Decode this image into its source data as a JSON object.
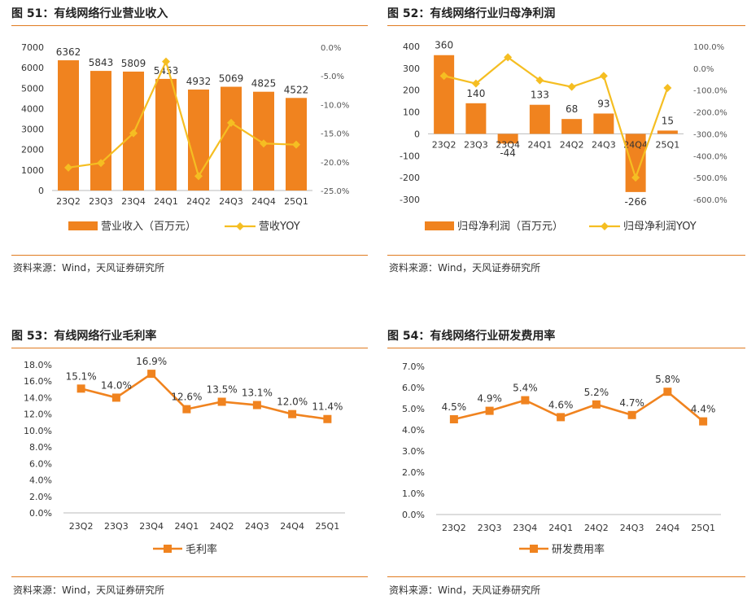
{
  "panels": [
    {
      "title": "图 51：有线网络行业营业收入",
      "source": "资料来源：Wind，天风证券研究所"
    },
    {
      "title": "图 52：有线网络行业归母净利润",
      "source": "资料来源：Wind，天风证券研究所"
    },
    {
      "title": "图 53：有线网络行业毛利率",
      "source": "资料来源：Wind，天风证券研究所"
    },
    {
      "title": "图 54：有线网络行业研发费用率",
      "source": "资料来源：Wind，天风证券研究所"
    }
  ],
  "colors": {
    "bar": "#F0831F",
    "line_yoy": "#F5BE22",
    "line_rate": "#F0831F",
    "rule": "#E07B20"
  },
  "chart_data": [
    {
      "type": "bar",
      "categories": [
        "23Q2",
        "23Q3",
        "23Q4",
        "24Q1",
        "24Q2",
        "24Q3",
        "24Q4",
        "25Q1"
      ],
      "series": [
        {
          "name": "营业收入（百万元）",
          "type": "bar",
          "axis": "left",
          "values": [
            6362,
            5843,
            5809,
            5453,
            4932,
            5069,
            4825,
            4522
          ]
        },
        {
          "name": "营收YOY",
          "type": "line",
          "axis": "right",
          "marker": "diamond",
          "values": [
            -21.0,
            -20.2,
            -15.0,
            -2.5,
            -22.5,
            -13.2,
            -16.8,
            -17.0
          ]
        }
      ],
      "ylim_left": [
        0,
        7000
      ],
      "yticks_left": [
        "7000",
        "6000",
        "5000",
        "4000",
        "3000",
        "2000",
        "1000",
        "0"
      ],
      "ylim_right": [
        -25,
        0
      ],
      "yticks_right": [
        "0.0%",
        "-5.0%",
        "-10.0%",
        "-15.0%",
        "-20.0%",
        "-25.0%"
      ],
      "data_labels": [
        "6362",
        "5843",
        "5809",
        "5453",
        "4932",
        "5069",
        "4825",
        "4522"
      ],
      "grid": false,
      "legend": "bottom"
    },
    {
      "type": "bar",
      "categories": [
        "23Q2",
        "23Q3",
        "23Q4",
        "24Q1",
        "24Q2",
        "24Q3",
        "24Q4",
        "25Q1"
      ],
      "series": [
        {
          "name": "归母净利润（百万元）",
          "type": "bar",
          "axis": "left",
          "values": [
            360,
            140,
            -44,
            133,
            68,
            93,
            -266,
            15
          ]
        },
        {
          "name": "归母净利润YOY",
          "type": "line",
          "axis": "right",
          "marker": "diamond",
          "values": [
            -35,
            -70,
            50,
            -55,
            -85,
            -35,
            -500,
            -90
          ]
        }
      ],
      "ylim_left": [
        -300,
        400
      ],
      "yticks_left": [
        "400",
        "300",
        "200",
        "100",
        "0",
        "-100",
        "-200",
        "-300"
      ],
      "ylim_right": [
        -600,
        100
      ],
      "yticks_right": [
        "100.0%",
        "0.0%",
        "-100.0%",
        "-200.0%",
        "-300.0%",
        "-400.0%",
        "-500.0%",
        "-600.0%"
      ],
      "data_labels": [
        "360",
        "140",
        "-44",
        "133",
        "68",
        "93",
        "-266",
        "15"
      ],
      "grid": false,
      "legend": "bottom"
    },
    {
      "type": "line",
      "categories": [
        "23Q2",
        "23Q3",
        "23Q4",
        "24Q1",
        "24Q2",
        "24Q3",
        "24Q4",
        "25Q1"
      ],
      "series": [
        {
          "name": "毛利率",
          "marker": "square",
          "values": [
            15.1,
            14.0,
            16.9,
            12.6,
            13.5,
            13.1,
            12.0,
            11.4
          ]
        }
      ],
      "ylim": [
        0,
        18
      ],
      "yticks": [
        "18.0%",
        "16.0%",
        "14.0%",
        "12.0%",
        "10.0%",
        "8.0%",
        "6.0%",
        "4.0%",
        "2.0%",
        "0.0%"
      ],
      "data_labels": [
        "15.1%",
        "14.0%",
        "16.9%",
        "12.6%",
        "13.5%",
        "13.1%",
        "12.0%",
        "11.4%"
      ],
      "grid": false,
      "legend": "bottom"
    },
    {
      "type": "line",
      "categories": [
        "23Q2",
        "23Q3",
        "23Q4",
        "24Q1",
        "24Q2",
        "24Q3",
        "24Q4",
        "25Q1"
      ],
      "series": [
        {
          "name": "研发费用率",
          "marker": "square",
          "values": [
            4.5,
            4.9,
            5.4,
            4.6,
            5.2,
            4.7,
            5.8,
            4.4
          ]
        }
      ],
      "ylim": [
        0,
        7
      ],
      "yticks": [
        "7.0%",
        "6.0%",
        "5.0%",
        "4.0%",
        "3.0%",
        "2.0%",
        "1.0%",
        "0.0%"
      ],
      "data_labels": [
        "4.5%",
        "4.9%",
        "5.4%",
        "4.6%",
        "5.2%",
        "4.7%",
        "5.8%",
        "4.4%"
      ],
      "grid": false,
      "legend": "bottom"
    }
  ]
}
